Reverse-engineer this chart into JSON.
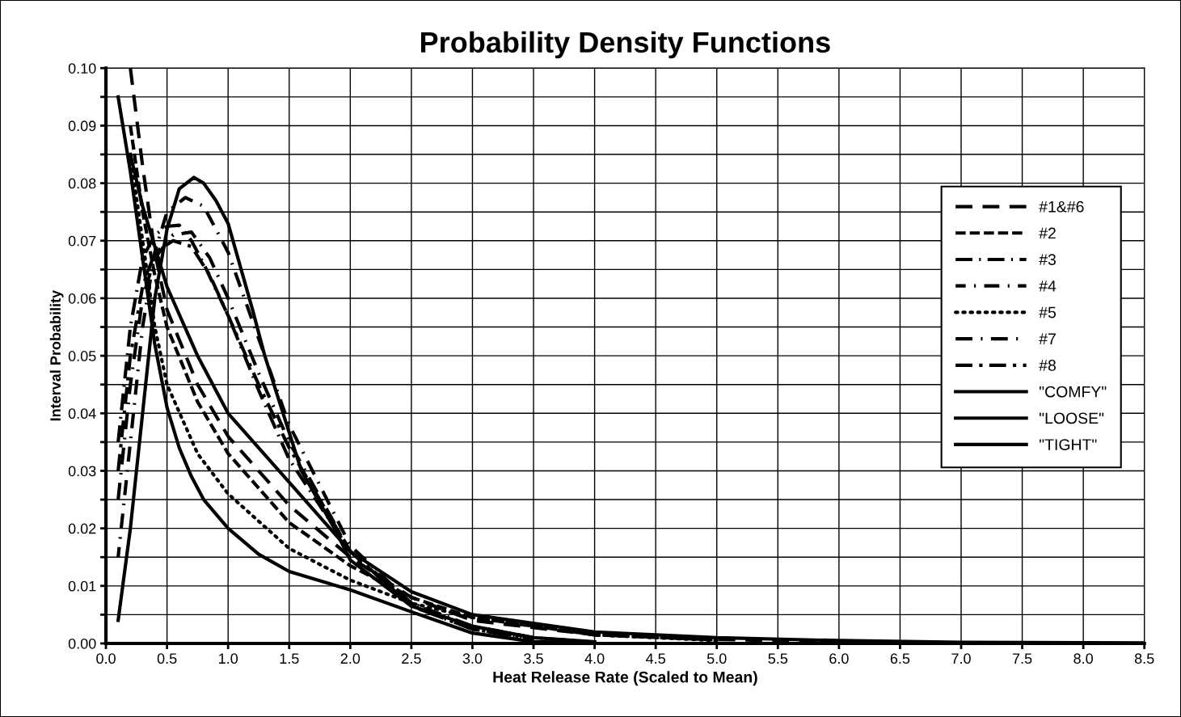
{
  "chart_data": {
    "type": "line",
    "title": "Probability Density Functions",
    "xlabel": "Heat Release Rate (Scaled to Mean)",
    "ylabel": "Interval Probability",
    "xlim": [
      0,
      8.5
    ],
    "ylim": [
      0,
      0.1
    ],
    "xticks": [
      {
        "value": 0,
        "label": "0.0"
      },
      0.5,
      {
        "value": 1,
        "label": "1.0"
      },
      1.5,
      {
        "value": 2,
        "label": "2.0"
      },
      2.5,
      {
        "value": 3,
        "label": "3.0"
      },
      3.5,
      {
        "value": 4,
        "label": "4.0"
      },
      4.5,
      {
        "value": 5,
        "label": "5.0"
      },
      5.5,
      {
        "value": 6,
        "label": "6.0"
      },
      6.5,
      {
        "value": 7,
        "label": "7.0"
      },
      7.5,
      {
        "value": 8,
        "label": "8.0"
      },
      8.5
    ],
    "yticks": [
      {
        "value": 0,
        "label": "0.00"
      },
      {
        "value": 0.005,
        "label": null
      },
      {
        "value": 0.01,
        "label": "0.01"
      },
      {
        "value": 0.015,
        "label": null
      },
      {
        "value": 0.02,
        "label": "0.02"
      },
      {
        "value": 0.025,
        "label": null
      },
      {
        "value": 0.03,
        "label": "0.03"
      },
      {
        "value": 0.035,
        "label": null
      },
      {
        "value": 0.04,
        "label": "0.04"
      },
      {
        "value": 0.045,
        "label": null
      },
      {
        "value": 0.05,
        "label": "0.05"
      },
      {
        "value": 0.055,
        "label": null
      },
      {
        "value": 0.06,
        "label": "0.06"
      },
      {
        "value": 0.065,
        "label": null
      },
      {
        "value": 0.07,
        "label": "0.07"
      },
      {
        "value": 0.075,
        "label": null
      },
      {
        "value": 0.08,
        "label": "0.08"
      },
      {
        "value": 0.085,
        "label": null
      },
      {
        "value": 0.09,
        "label": "0.09"
      },
      {
        "value": 0.095,
        "label": null
      },
      {
        "value": 0.1,
        "label": "0.10"
      }
    ],
    "grid": true,
    "legend": "right",
    "marker": "none",
    "series": [
      {
        "name": "#1&#6",
        "color": "#000000",
        "line_style": "dashed",
        "x": [
          0.2,
          0.3,
          0.4,
          0.5,
          0.75,
          1.0,
          1.5,
          2.0,
          2.5,
          3.0,
          4.0,
          5.0,
          6.0
        ],
        "values": [
          0.1,
          0.083,
          0.068,
          0.058,
          0.045,
          0.036,
          0.024,
          0.015,
          0.008,
          0.004,
          0.0015,
          0.0007,
          0.0003
        ]
      },
      {
        "name": "#2",
        "color": "#000000",
        "line_style": "dashed",
        "x": [
          0.2,
          0.3,
          0.4,
          0.5,
          0.75,
          1.0,
          1.5,
          2.0,
          2.5,
          3.0,
          4.0,
          5.0
        ],
        "values": [
          0.09,
          0.075,
          0.064,
          0.055,
          0.042,
          0.033,
          0.021,
          0.0135,
          0.008,
          0.0045,
          0.0015,
          0.0006
        ]
      },
      {
        "name": "#3",
        "color": "#000000",
        "line_style": "dashed",
        "x": [
          0.1,
          0.2,
          0.3,
          0.4,
          0.5,
          0.6,
          0.7,
          0.8,
          1.0,
          1.25,
          1.5,
          2.0,
          2.5,
          3.0,
          3.5,
          4.0
        ],
        "values": [
          0.035,
          0.055,
          0.067,
          0.071,
          0.0725,
          0.0727,
          0.07,
          0.066,
          0.057,
          0.044,
          0.032,
          0.016,
          0.007,
          0.003,
          0.001,
          0.0002
        ]
      },
      {
        "name": "#4",
        "color": "#000000",
        "line_style": "dashed",
        "x": [
          0.1,
          0.2,
          0.3,
          0.4,
          0.5,
          0.65,
          0.8,
          1.0,
          1.25,
          1.5,
          2.0,
          2.5,
          3.0,
          3.5
        ],
        "values": [
          0.015,
          0.035,
          0.055,
          0.068,
          0.075,
          0.0775,
          0.076,
          0.068,
          0.053,
          0.038,
          0.017,
          0.007,
          0.0025,
          0.0008
        ]
      },
      {
        "name": "#5",
        "color": "#000000",
        "line_style": "dotted",
        "x": [
          0.2,
          0.3,
          0.4,
          0.5,
          0.75,
          1.0,
          1.5,
          2.0,
          2.5,
          3.0,
          4.0,
          5.0
        ],
        "values": [
          0.085,
          0.07,
          0.055,
          0.045,
          0.033,
          0.026,
          0.0165,
          0.011,
          0.007,
          0.0045,
          0.0015,
          0.0005
        ]
      },
      {
        "name": "#7",
        "color": "#000000",
        "line_style": "dashed",
        "x": [
          0.1,
          0.2,
          0.3,
          0.4,
          0.55,
          0.7,
          0.85,
          1.0,
          1.25,
          1.5,
          2.0,
          2.5,
          3.0,
          3.5
        ],
        "values": [
          0.025,
          0.045,
          0.06,
          0.067,
          0.071,
          0.0715,
          0.067,
          0.06,
          0.047,
          0.035,
          0.016,
          0.0065,
          0.0025,
          0.0007
        ]
      },
      {
        "name": "#8",
        "color": "#000000",
        "line_style": "dashed",
        "x": [
          0.1,
          0.2,
          0.3,
          0.4,
          0.55,
          0.7,
          0.85,
          1.0,
          1.25,
          1.5,
          2.0,
          2.5,
          3.0,
          3.5
        ],
        "values": [
          0.03,
          0.05,
          0.062,
          0.068,
          0.07,
          0.069,
          0.064,
          0.057,
          0.045,
          0.034,
          0.016,
          0.0065,
          0.0025,
          0.0008
        ]
      },
      {
        "name": "\"COMFY\"",
        "color": "#000000",
        "line_style": "solid",
        "x": [
          0.2,
          0.3,
          0.5,
          0.75,
          1.0,
          1.5,
          2.0,
          2.5,
          3.0,
          4.0,
          5.0,
          6.0,
          7.0,
          8.5
        ],
        "values": [
          0.085,
          0.076,
          0.062,
          0.05,
          0.04,
          0.028,
          0.016,
          0.009,
          0.005,
          0.002,
          0.001,
          0.0005,
          0.0002,
          0.0001
        ]
      },
      {
        "name": "\"LOOSE\"",
        "color": "#000000",
        "line_style": "solid",
        "x": [
          0.1,
          0.2,
          0.3,
          0.4,
          0.5,
          0.6,
          0.7,
          0.8,
          1.0,
          1.25,
          1.5,
          2.0,
          2.5,
          3.0,
          3.5,
          4.0
        ],
        "values": [
          0.095,
          0.082,
          0.067,
          0.052,
          0.041,
          0.034,
          0.029,
          0.025,
          0.02,
          0.0155,
          0.0125,
          0.0093,
          0.0055,
          0.0018,
          0.0003,
          0.0001
        ]
      },
      {
        "name": "\"TIGHT\"",
        "color": "#000000",
        "line_style": "solid",
        "x": [
          0.1,
          0.2,
          0.3,
          0.4,
          0.5,
          0.6,
          0.72,
          0.8,
          0.9,
          1.0,
          1.2,
          1.3,
          1.45,
          1.6,
          1.87,
          2.0,
          2.5,
          3.0,
          3.5,
          4.0
        ],
        "values": [
          0.004,
          0.02,
          0.04,
          0.06,
          0.072,
          0.079,
          0.081,
          0.08,
          0.077,
          0.073,
          0.058,
          0.05,
          0.04,
          0.03,
          0.02,
          0.0145,
          0.0065,
          0.003,
          0.001,
          0.0003
        ]
      }
    ]
  }
}
